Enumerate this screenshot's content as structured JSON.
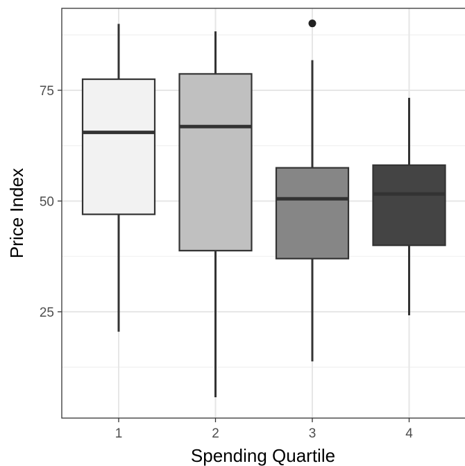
{
  "chart_data": {
    "type": "boxplot",
    "xlabel": "Spending Quartile",
    "ylabel": "Price Index",
    "ylim": [
      1,
      93.5
    ],
    "yticks": [
      25,
      50,
      75
    ],
    "ytick_labels": [
      "25",
      "50",
      "75"
    ],
    "grid": true,
    "categories": [
      "1",
      "2",
      "3",
      "4"
    ],
    "boxes": [
      {
        "category": "1",
        "whisker_low": 20.5,
        "q1": 47,
        "median": 65.5,
        "q3": 77.5,
        "whisker_high": 90,
        "outliers": [],
        "fill": "#f2f2f2"
      },
      {
        "category": "2",
        "whisker_low": 5.7,
        "q1": 38.8,
        "median": 66.8,
        "q3": 78.7,
        "whisker_high": 88.3,
        "outliers": [],
        "fill": "#c0c0c0"
      },
      {
        "category": "3",
        "whisker_low": 13.8,
        "q1": 37,
        "median": 50.5,
        "q3": 57.5,
        "whisker_high": 81.8,
        "outliers": [
          90.1
        ],
        "fill": "#868686"
      },
      {
        "category": "4",
        "whisker_low": 24.2,
        "q1": 40,
        "median": 51.6,
        "q3": 58.1,
        "whisker_high": 73.3,
        "outliers": [],
        "fill": "#444444"
      }
    ]
  }
}
